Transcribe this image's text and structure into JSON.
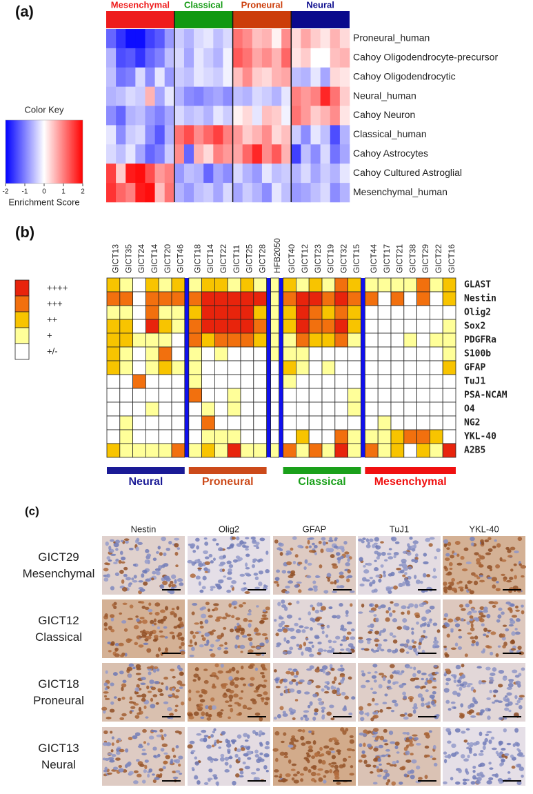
{
  "chart_data": [
    {
      "type": "heatmap",
      "label": "(a)",
      "rows": [
        "Proneural_human",
        "Cahoy Oligodendrocyte-precursor",
        "Cahoy Oligodendrocytic",
        "Neural_human",
        "Cahoy Neuron",
        "Classical_human",
        "Cahoy Astrocytes",
        "Cahoy Cultured Astroglial",
        "Mesenchymal_human"
      ],
      "column_groups": [
        {
          "name": "Mesenchymal",
          "color": "#ee1c1c",
          "count": 7
        },
        {
          "name": "Classical",
          "color": "#119911",
          "count": 6
        },
        {
          "name": "Proneural",
          "color": "#cc3d0a",
          "count": 6
        },
        {
          "name": "Neural",
          "color": "#0a0a8c",
          "count": 6
        }
      ],
      "values": [
        [
          -1.2,
          -1.6,
          -1.9,
          -1.9,
          -1.5,
          -1.3,
          -0.8,
          -0.4,
          -0.6,
          -0.3,
          -0.2,
          -0.5,
          -0.3,
          1.1,
          0.9,
          0.5,
          0.6,
          0.1,
          0.9,
          0.3,
          0.7,
          0.4,
          0.2,
          0.6,
          0.3
        ],
        [
          -0.6,
          -1.4,
          -1.3,
          -1.6,
          -1.2,
          -1.0,
          -0.5,
          -0.3,
          -0.7,
          -0.2,
          -0.4,
          -0.6,
          -0.1,
          1.3,
          1.1,
          0.7,
          0.9,
          0.6,
          1.2,
          0.2,
          0.4,
          0.0,
          0.0,
          0.5,
          0.6
        ],
        [
          -0.5,
          -1.1,
          -1.0,
          -0.3,
          -0.9,
          -0.2,
          -0.8,
          -0.4,
          -0.5,
          -0.2,
          -0.3,
          -0.4,
          -0.1,
          0.5,
          0.9,
          0.4,
          0.3,
          0.6,
          0.7,
          -0.5,
          -0.6,
          -0.2,
          -0.7,
          0.3,
          0.2
        ],
        [
          -0.6,
          -0.5,
          -0.3,
          -0.4,
          0.6,
          -0.7,
          -0.2,
          -0.6,
          -0.9,
          -1.0,
          -0.8,
          -0.7,
          -0.9,
          -0.5,
          -0.6,
          -0.3,
          -0.4,
          -0.6,
          -0.2,
          1.0,
          0.8,
          1.0,
          1.7,
          1.1,
          0.4
        ],
        [
          -0.9,
          -1.2,
          -0.6,
          -0.5,
          -0.8,
          -1.0,
          -0.7,
          -0.3,
          -0.5,
          -0.4,
          -0.6,
          -0.2,
          -0.4,
          0.1,
          0.3,
          -0.2,
          0.5,
          0.4,
          -0.1,
          1.1,
          0.8,
          0.4,
          0.6,
          0.9,
          0.2
        ],
        [
          -0.2,
          -0.9,
          -0.4,
          -0.3,
          -0.9,
          -1.3,
          -0.6,
          1.1,
          1.4,
          0.9,
          1.2,
          1.5,
          1.0,
          0.8,
          0.4,
          0.6,
          0.9,
          0.3,
          0.5,
          -0.4,
          -0.9,
          -0.2,
          -0.5,
          -1.4,
          -0.6
        ],
        [
          -0.3,
          -0.5,
          -0.2,
          -0.7,
          -1.2,
          -1.0,
          -0.4,
          0.9,
          -1.2,
          0.6,
          0.3,
          1.0,
          0.8,
          0.7,
          1.2,
          1.7,
          0.9,
          1.3,
          0.6,
          -1.5,
          -0.5,
          -0.9,
          -0.3,
          -1.1,
          -0.7
        ],
        [
          1.5,
          0.4,
          1.8,
          1.9,
          1.4,
          0.8,
          1.0,
          -0.8,
          -0.5,
          -0.6,
          -1.2,
          -0.7,
          -0.9,
          -0.3,
          -0.6,
          -0.8,
          -0.2,
          -0.5,
          -0.4,
          -0.6,
          -0.3,
          -0.7,
          -0.4,
          -0.6,
          -0.2
        ],
        [
          1.6,
          1.2,
          1.0,
          1.8,
          1.9,
          0.5,
          1.1,
          -0.6,
          -0.8,
          -0.5,
          -0.4,
          -0.7,
          -0.3,
          -0.7,
          -0.4,
          -0.6,
          -0.9,
          -0.2,
          -0.5,
          -0.8,
          -0.7,
          -0.5,
          -0.3,
          -0.9,
          -0.6
        ]
      ],
      "colorscale": {
        "title": "Color Key",
        "xlabel": "Enrichment Score",
        "range": [
          -2,
          2
        ],
        "ticks": [
          -2,
          -1,
          0,
          1,
          2
        ],
        "colors": [
          "#0000ff",
          "#ffffff",
          "#ff0000"
        ]
      }
    },
    {
      "type": "grid",
      "label": "(b)",
      "columns": [
        "GICT13",
        "GICT35",
        "GICT24",
        "GICT14",
        "GICT20",
        "GICT46",
        "GICT18",
        "GICT14",
        "GICT22",
        "GICT11",
        "GICT25",
        "GICT28",
        "HFB2050",
        "GICT40",
        "GICT12",
        "GICT23",
        "GICT19",
        "GICT32",
        "GICT15",
        "GICT44",
        "GICT17",
        "GICT21",
        "GICT38",
        "GICT29",
        "GICT22",
        "GICT16"
      ],
      "rows": [
        "GLAST",
        "Nestin",
        "Olig2",
        "Sox2",
        "PDGFRa",
        "S100b",
        "GFAP",
        "TuJ1",
        "PSA-NCAM",
        "O4",
        "NG2",
        "YKL-40",
        "A2B5"
      ],
      "levels": [
        {
          "value": 4,
          "label": "++++",
          "color": "#e8240c"
        },
        {
          "value": 3,
          "label": "+++",
          "color": "#f2700e"
        },
        {
          "value": 2,
          "label": "++",
          "color": "#f8c400"
        },
        {
          "value": 1,
          "label": "+",
          "color": "#ffff99"
        },
        {
          "value": 0,
          "label": "+/-",
          "color": "#ffffff"
        }
      ],
      "separator_color": "#1010ee",
      "groups": [
        {
          "name": "Neural",
          "color": "#1a1a96",
          "columns": [
            0,
            5
          ]
        },
        {
          "name": "Proneural",
          "color": "#cc4a1a",
          "columns": [
            6,
            11
          ]
        },
        {
          "name": "Classical",
          "color": "#1aa01a",
          "columns": [
            13,
            18
          ]
        },
        {
          "name": "Mesenchymal",
          "color": "#f01010",
          "columns": [
            19,
            25
          ]
        }
      ],
      "values": [
        [
          2,
          1,
          0,
          2,
          1,
          2,
          1,
          2,
          2,
          1,
          2,
          1,
          1,
          2,
          1,
          2,
          1,
          3,
          2,
          1,
          1,
          1,
          1,
          3,
          1,
          2
        ],
        [
          3,
          3,
          0,
          3,
          3,
          3,
          3,
          4,
          4,
          4,
          4,
          4,
          1,
          3,
          4,
          4,
          3,
          4,
          3,
          3,
          0,
          3,
          0,
          3,
          0,
          2
        ],
        [
          1,
          1,
          0,
          3,
          1,
          1,
          2,
          4,
          4,
          4,
          4,
          2,
          1,
          2,
          4,
          3,
          2,
          3,
          2,
          0,
          0,
          0,
          0,
          0,
          0,
          0
        ],
        [
          2,
          2,
          0,
          4,
          2,
          1,
          3,
          4,
          4,
          4,
          4,
          3,
          1,
          2,
          4,
          3,
          3,
          4,
          2,
          0,
          0,
          0,
          0,
          0,
          0,
          1
        ],
        [
          2,
          2,
          1,
          1,
          1,
          0,
          3,
          2,
          3,
          3,
          3,
          2,
          1,
          1,
          3,
          2,
          2,
          3,
          1,
          0,
          0,
          0,
          1,
          0,
          1,
          1
        ],
        [
          2,
          1,
          0,
          1,
          3,
          0,
          1,
          0,
          1,
          0,
          0,
          0,
          1,
          1,
          1,
          0,
          0,
          0,
          0,
          0,
          0,
          0,
          0,
          0,
          0,
          1
        ],
        [
          2,
          1,
          0,
          1,
          2,
          1,
          1,
          0,
          0,
          0,
          0,
          0,
          0,
          2,
          1,
          0,
          1,
          0,
          0,
          0,
          0,
          0,
          0,
          0,
          0,
          2
        ],
        [
          0,
          0,
          3,
          0,
          0,
          0,
          1,
          0,
          0,
          0,
          0,
          0,
          0,
          1,
          0,
          0,
          0,
          0,
          0,
          0,
          0,
          0,
          0,
          0,
          0,
          0
        ],
        [
          0,
          0,
          0,
          0,
          0,
          0,
          3,
          0,
          0,
          1,
          0,
          0,
          0,
          0,
          0,
          0,
          0,
          0,
          1,
          0,
          0,
          0,
          0,
          0,
          0,
          0
        ],
        [
          0,
          0,
          0,
          1,
          0,
          0,
          0,
          1,
          0,
          1,
          0,
          0,
          0,
          0,
          0,
          0,
          0,
          0,
          1,
          0,
          0,
          0,
          0,
          0,
          0,
          0
        ],
        [
          0,
          1,
          0,
          0,
          0,
          0,
          0,
          3,
          0,
          0,
          0,
          0,
          0,
          0,
          0,
          0,
          0,
          0,
          0,
          0,
          1,
          0,
          0,
          0,
          0,
          0
        ],
        [
          0,
          1,
          0,
          0,
          0,
          0,
          0,
          1,
          1,
          1,
          0,
          0,
          0,
          0,
          2,
          0,
          0,
          3,
          1,
          1,
          1,
          2,
          3,
          3,
          2,
          0
        ],
        [
          2,
          1,
          1,
          1,
          1,
          3,
          1,
          2,
          1,
          4,
          1,
          1,
          1,
          3,
          1,
          3,
          1,
          4,
          1,
          3,
          1,
          2,
          0,
          2,
          1,
          4
        ]
      ]
    }
  ],
  "panel_c": {
    "label": "(c)",
    "columns": [
      "Nestin",
      "Olig2",
      "GFAP",
      "TuJ1",
      "YKL-40"
    ],
    "rows": [
      [
        "GICT29",
        "Mesenchymal"
      ],
      [
        "GICT12",
        "Classical"
      ],
      [
        "GICT18",
        "Proneural"
      ],
      [
        "GICT13",
        "Neural"
      ]
    ]
  }
}
